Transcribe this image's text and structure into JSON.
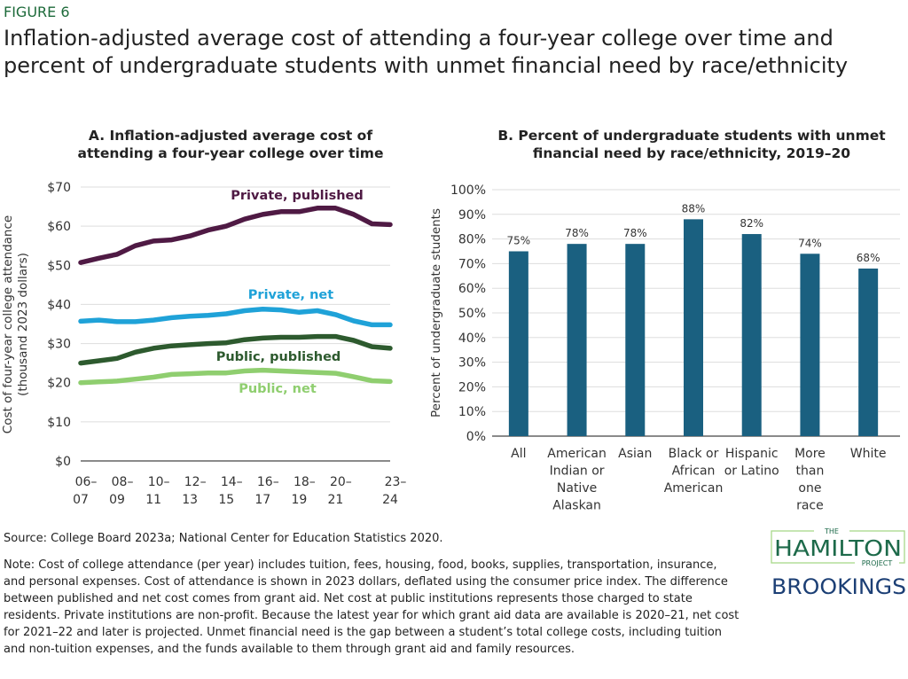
{
  "figure_label": "FIGURE 6",
  "title": "Inflation-adjusted average cost of attending a four-year college over time and percent of undergraduate students with unmet financial need by race/ethnicity",
  "chart_data": [
    {
      "type": "line",
      "title": "A. Inflation-adjusted average cost of attending a four-year college over time",
      "ylabel": "Cost of four-year college attendance (thousand 2023 dollars)",
      "ylim": [
        0,
        70
      ],
      "yticks": [
        "$0",
        "$10",
        "$20",
        "$30",
        "$40",
        "$50",
        "$60",
        "$70"
      ],
      "x": [
        "2006-07",
        "2007-08",
        "2008-09",
        "2009-10",
        "2010-11",
        "2011-12",
        "2012-13",
        "2013-14",
        "2014-15",
        "2015-16",
        "2016-17",
        "2017-18",
        "2018-19",
        "2019-20",
        "2020-21",
        "2021-22",
        "2022-23",
        "2023-24"
      ],
      "xtick_labels": [
        {
          "i": 0,
          "top": "06–",
          "bottom": "07"
        },
        {
          "i": 2,
          "top": "08–",
          "bottom": "09"
        },
        {
          "i": 4,
          "top": "10–",
          "bottom": "11"
        },
        {
          "i": 6,
          "top": "12–",
          "bottom": "13"
        },
        {
          "i": 8,
          "top": "14–",
          "bottom": "15"
        },
        {
          "i": 10,
          "top": "16–",
          "bottom": "17"
        },
        {
          "i": 12,
          "top": "18–",
          "bottom": "19"
        },
        {
          "i": 14,
          "top": "20–",
          "bottom": "21"
        },
        {
          "i": 17,
          "top": "23–",
          "bottom": "24"
        }
      ],
      "grid": true,
      "series": [
        {
          "name": "Private, published",
          "color": "#4f1a44",
          "values": [
            50.7,
            51.8,
            52.8,
            55,
            56.2,
            56.5,
            57.5,
            59,
            60,
            61.8,
            63,
            63.7,
            63.7,
            64.6,
            64.6,
            63,
            60.6,
            60.4
          ]
        },
        {
          "name": "Private, net",
          "color": "#1fa2d8",
          "values": [
            35.7,
            36,
            35.6,
            35.6,
            36,
            36.6,
            37,
            37.2,
            37.6,
            38.4,
            38.8,
            38.6,
            38,
            38.4,
            37.4,
            35.8,
            34.8,
            34.8
          ]
        },
        {
          "name": "Public, published",
          "color": "#2d5a2e",
          "values": [
            25,
            25.6,
            26.2,
            27.8,
            28.8,
            29.4,
            29.7,
            30,
            30.2,
            31,
            31.4,
            31.6,
            31.6,
            31.8,
            31.8,
            30.8,
            29.2,
            28.8
          ]
        },
        {
          "name": "Public, net",
          "color": "#8fce6f",
          "values": [
            20,
            20.2,
            20.4,
            20.9,
            21.4,
            22.1,
            22.3,
            22.5,
            22.5,
            23,
            23.2,
            23,
            22.8,
            22.6,
            22.4,
            21.5,
            20.5,
            20.3
          ]
        }
      ]
    },
    {
      "type": "bar",
      "title": "B. Percent of undergraduate students with unmet financial need by race/ethnicity, 2019–20",
      "ylabel": "Percent of undergraduate  students",
      "ylim": [
        0,
        100
      ],
      "yticks": [
        "0%",
        "10%",
        "20%",
        "30%",
        "40%",
        "50%",
        "60%",
        "70%",
        "80%",
        "90%",
        "100%"
      ],
      "categories": [
        [
          "All"
        ],
        [
          "American",
          "Indian or",
          "Native",
          "Alaskan"
        ],
        [
          "Asian"
        ],
        [
          "Black or",
          "African",
          "American"
        ],
        [
          "Hispanic",
          "or Latino"
        ],
        [
          "More",
          "than",
          "one",
          "race"
        ],
        [
          "White"
        ]
      ],
      "values": [
        75,
        78,
        78,
        88,
        82,
        74,
        68
      ],
      "data_labels": [
        "75%",
        "78%",
        "78%",
        "88%",
        "82%",
        "74%",
        "68%"
      ],
      "color": "#1a6080",
      "grid": true
    }
  ],
  "source": "Source: College Board 2023a; National Center for Education Statistics 2020.",
  "note": "Note: Cost of college attendance (per year) includes tuition, fees, housing, food, books, supplies, transportation, insurance, and personal expenses. Cost of attendance is shown in 2023 dollars, deflated using the consumer price index. The difference between published and net cost comes from grant aid. Net cost at public institutions represents those charged to state residents.  Private institutions are non-profit. Because the latest year for which grant aid data are available is 2020–21, net cost for 2021–22 and later is projected. Unmet financial need is the gap between a student’s total college costs, including tuition and non-tuition expenses, and the funds available to them through grant aid and family resources.",
  "logos": {
    "hamilton": [
      "THE",
      "HAMILTON",
      "PROJECT"
    ],
    "brookings": "BROOKINGS"
  }
}
